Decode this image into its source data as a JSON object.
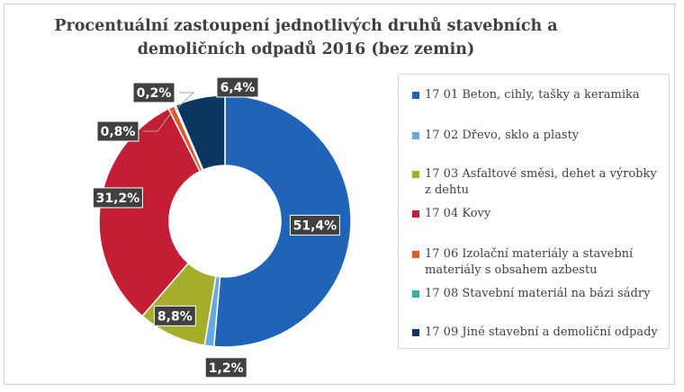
{
  "chart_data": {
    "type": "pie",
    "title": "Procentuální zastoupení jednotlivých druhů stavebních a demoličních odpadů 2016 (bez zemin)",
    "legend_position": "right",
    "series": [
      {
        "name": "17 01 Beton, cihly, tašky a keramika",
        "value": 51.4,
        "label": "51,4%",
        "color": "#1f64b8"
      },
      {
        "name": "17 02 Dřevo, sklo a plasty",
        "value": 1.2,
        "label": "1,2%",
        "color": "#64a9df"
      },
      {
        "name": "17 03 Asfaltové směsi, dehet a výrobky z dehtu",
        "value": 8.8,
        "label": "8,8%",
        "color": "#a5ad2a"
      },
      {
        "name": "17 04 Kovy",
        "value": 31.2,
        "label": "31,2%",
        "color": "#c41e36"
      },
      {
        "name": "17 06 Izolační materiály a stavební materiály s obsahem azbestu",
        "value": 0.8,
        "label": "0,8%",
        "color": "#e2592a"
      },
      {
        "name": "17 08 Stavební materiál na bázi sádry",
        "value": 0.2,
        "label": "0,2%",
        "color": "#2ab5a3"
      },
      {
        "name": "17 09 Jiné stavební a demoliční odpady",
        "value": 6.4,
        "label": "6,4%",
        "color": "#0b365f"
      }
    ]
  }
}
